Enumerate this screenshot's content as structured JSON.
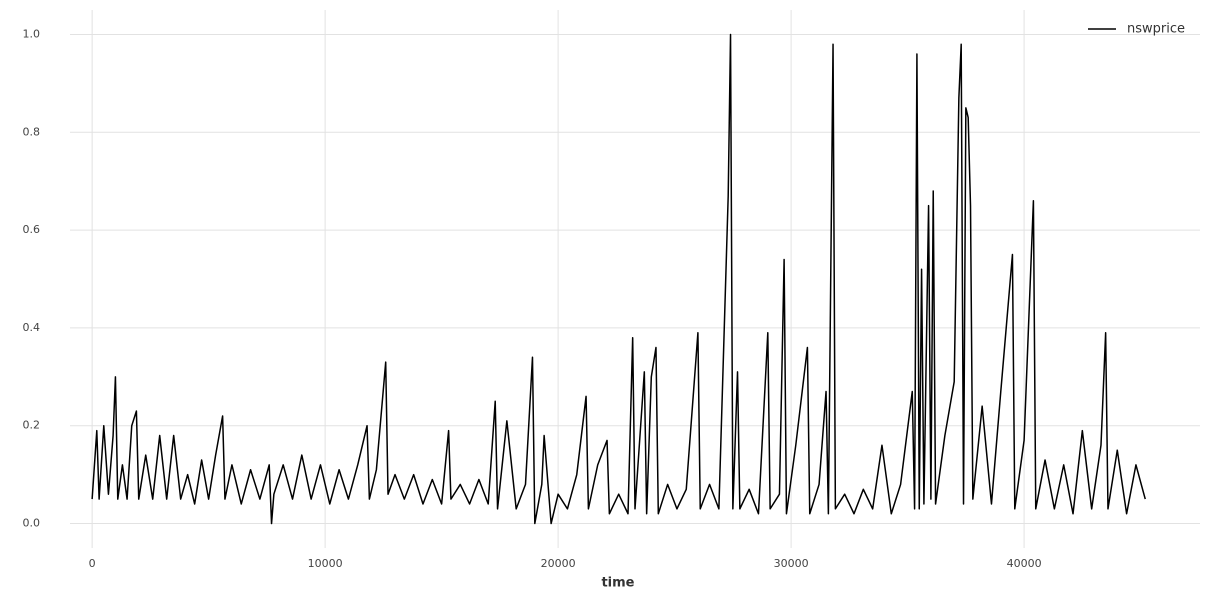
{
  "chart_data": {
    "type": "line",
    "xlabel": "time",
    "xlim": [
      -950,
      47550
    ],
    "ylim": [
      -0.05,
      1.05
    ],
    "xticks": [
      0,
      10000,
      20000,
      30000,
      40000
    ],
    "yticks": [
      {
        "value": 0,
        "label": "0.0"
      },
      0.2,
      0.4,
      0.6,
      0.8,
      {
        "value": 1,
        "label": "1.0"
      }
    ],
    "grid": true,
    "legend": "upper right",
    "x": [
      0,
      200,
      300,
      500,
      700,
      900,
      1000,
      1100,
      1300,
      1500,
      1700,
      1900,
      2000,
      2300,
      2600,
      2900,
      3200,
      3500,
      3800,
      4100,
      4400,
      4700,
      5000,
      5300,
      5600,
      5700,
      6000,
      6400,
      6800,
      7200,
      7600,
      7700,
      7800,
      8200,
      8600,
      9000,
      9400,
      9800,
      10200,
      10600,
      11000,
      11400,
      11800,
      11900,
      12200,
      12600,
      12700,
      13000,
      13400,
      13800,
      14200,
      14600,
      15000,
      15300,
      15400,
      15800,
      16200,
      16600,
      17000,
      17300,
      17400,
      17800,
      18200,
      18600,
      18900,
      19000,
      19300,
      19400,
      19700,
      20000,
      20400,
      20800,
      21200,
      21300,
      21700,
      22100,
      22200,
      22600,
      23000,
      23200,
      23300,
      23700,
      23800,
      24000,
      24200,
      24300,
      24700,
      25100,
      25500,
      26000,
      26100,
      26500,
      26900,
      27300,
      27400,
      27500,
      27700,
      27800,
      28200,
      28600,
      29000,
      29100,
      29500,
      29700,
      29800,
      30200,
      30700,
      30800,
      31200,
      31500,
      31600,
      31800,
      31900,
      32300,
      32700,
      33100,
      33500,
      33900,
      34300,
      34700,
      35200,
      35300,
      35400,
      35500,
      35600,
      35700,
      35900,
      36000,
      36100,
      36200,
      36600,
      37000,
      37200,
      37300,
      37400,
      37500,
      37600,
      37700,
      37800,
      38200,
      38600,
      39000,
      39500,
      39600,
      40000,
      40400,
      40500,
      40900,
      41300,
      41700,
      42100,
      42500,
      42900,
      43300,
      43500,
      43600,
      44000,
      44400,
      44800,
      45200
    ],
    "series": [
      {
        "name": "nswprice",
        "color": "#000000",
        "values": [
          0.05,
          0.19,
          0.05,
          0.2,
          0.06,
          0.18,
          0.3,
          0.05,
          0.12,
          0.05,
          0.2,
          0.23,
          0.05,
          0.14,
          0.05,
          0.18,
          0.05,
          0.18,
          0.05,
          0.1,
          0.04,
          0.13,
          0.05,
          0.14,
          0.22,
          0.05,
          0.12,
          0.04,
          0.11,
          0.05,
          0.12,
          0.0,
          0.06,
          0.12,
          0.05,
          0.14,
          0.05,
          0.12,
          0.04,
          0.11,
          0.05,
          0.12,
          0.2,
          0.05,
          0.11,
          0.33,
          0.06,
          0.1,
          0.05,
          0.1,
          0.04,
          0.09,
          0.04,
          0.19,
          0.05,
          0.08,
          0.04,
          0.09,
          0.04,
          0.25,
          0.03,
          0.21,
          0.03,
          0.08,
          0.34,
          0.0,
          0.08,
          0.18,
          0.0,
          0.06,
          0.03,
          0.1,
          0.26,
          0.03,
          0.12,
          0.17,
          0.02,
          0.06,
          0.02,
          0.38,
          0.03,
          0.31,
          0.02,
          0.3,
          0.36,
          0.02,
          0.08,
          0.03,
          0.07,
          0.39,
          0.03,
          0.08,
          0.03,
          0.67,
          1.0,
          0.03,
          0.31,
          0.03,
          0.07,
          0.02,
          0.39,
          0.03,
          0.06,
          0.54,
          0.02,
          0.16,
          0.36,
          0.02,
          0.08,
          0.27,
          0.02,
          0.98,
          0.03,
          0.06,
          0.02,
          0.07,
          0.03,
          0.16,
          0.02,
          0.08,
          0.27,
          0.03,
          0.96,
          0.03,
          0.52,
          0.04,
          0.65,
          0.05,
          0.68,
          0.04,
          0.18,
          0.29,
          0.87,
          0.98,
          0.04,
          0.85,
          0.83,
          0.65,
          0.05,
          0.24,
          0.04,
          0.27,
          0.55,
          0.03,
          0.17,
          0.66,
          0.03,
          0.13,
          0.03,
          0.12,
          0.02,
          0.19,
          0.03,
          0.16,
          0.39,
          0.03,
          0.15,
          0.02,
          0.12,
          0.05
        ]
      }
    ]
  }
}
